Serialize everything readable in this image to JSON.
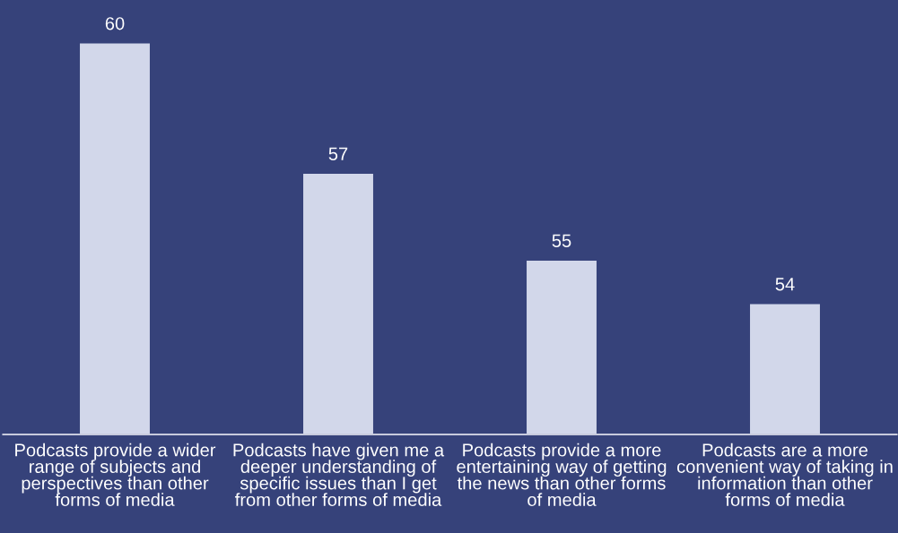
{
  "chart_data": {
    "type": "bar",
    "categories": [
      "Podcasts provide a wider range of subjects and perspectives than other forms of media",
      "Podcasts have given me a deeper understanding of specific issues than I get from other forms of media",
      "Podcasts provide a more entertaining way of getting the news than other forms of media",
      "Podcasts are a more convenient way of taking in information than other forms of media"
    ],
    "values": [
      60,
      57,
      55,
      54
    ],
    "color": "#d2d7ea",
    "ylim": [
      51,
      61
    ],
    "data_labels": true,
    "tick_labels": "x"
  }
}
